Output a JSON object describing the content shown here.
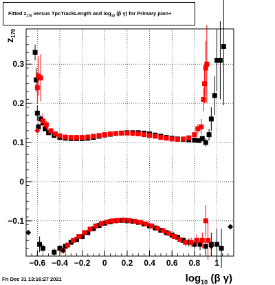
{
  "title": {
    "prefix": "Fitted  z",
    "sub1": "170",
    "middle": " versus TpcTrackLength and log",
    "sub2": "10",
    "suffix": "(β  γ) for Primary pion+"
  },
  "footer": "Fri Dec 31 13:16:27 2021",
  "chart_data": {
    "type": "scatter",
    "xlabel_main": "log",
    "xlabel_sub": "10",
    "xlabel_tail": "(β γ)",
    "ylabel_main": "z",
    "ylabel_sub": "170",
    "xlim": [
      -0.7,
      1.15
    ],
    "ylim": [
      -0.19,
      0.39
    ],
    "xticks": [
      -0.6,
      -0.4,
      -0.2,
      0,
      0.2,
      0.4,
      0.6,
      0.8,
      1
    ],
    "xtick_labels": [
      "−0.6",
      "−0.4",
      "−0.2",
      "0",
      "0.2",
      "0.4",
      "0.6",
      "0.8",
      "1"
    ],
    "yticks": [
      -0.1,
      0,
      0.1,
      0.2,
      0.3
    ],
    "ytick_labels": [
      "−0.1",
      "0",
      "0.1",
      "0.2",
      "0.3"
    ],
    "grid": true,
    "colors": {
      "black": "#000000",
      "red": "#ff0000"
    },
    "series": [
      {
        "color": "#000000",
        "marker": "square",
        "points": [
          [
            -0.62,
            0.33,
            0.02
          ],
          [
            -0.61,
            0.26,
            0.03
          ],
          [
            -0.6,
            0.175,
            0.02
          ],
          [
            -0.59,
            0.14,
            0.01
          ],
          [
            -0.57,
            0.16,
            0.01
          ],
          [
            -0.55,
            0.15,
            0.01
          ],
          [
            -0.53,
            0.135,
            0.005
          ],
          [
            -0.5,
            0.125,
            0.004
          ],
          [
            -0.45,
            0.118,
            0.003
          ],
          [
            -0.4,
            0.113,
            0.002
          ],
          [
            -0.35,
            0.111,
            0.002
          ],
          [
            -0.3,
            0.11,
            0.002
          ],
          [
            -0.25,
            0.11,
            0.002
          ],
          [
            -0.2,
            0.11,
            0.002
          ],
          [
            -0.15,
            0.111,
            0.002
          ],
          [
            -0.1,
            0.113,
            0.002
          ],
          [
            -0.05,
            0.116,
            0.002
          ],
          [
            0,
            0.119,
            0.002
          ],
          [
            0.05,
            0.121,
            0.002
          ],
          [
            0.1,
            0.123,
            0.002
          ],
          [
            0.15,
            0.124,
            0.002
          ],
          [
            0.2,
            0.125,
            0.002
          ],
          [
            0.25,
            0.125,
            0.002
          ],
          [
            0.3,
            0.125,
            0.002
          ],
          [
            0.35,
            0.124,
            0.002
          ],
          [
            0.4,
            0.122,
            0.002
          ],
          [
            0.45,
            0.119,
            0.002
          ],
          [
            0.5,
            0.116,
            0.002
          ],
          [
            0.55,
            0.113,
            0.002
          ],
          [
            0.6,
            0.111,
            0.002
          ],
          [
            0.65,
            0.109,
            0.002
          ],
          [
            0.7,
            0.108,
            0.003
          ],
          [
            0.75,
            0.107,
            0.003
          ],
          [
            0.8,
            0.106,
            0.004
          ],
          [
            0.84,
            0.105,
            0.005
          ],
          [
            0.87,
            0.11,
            0.007
          ],
          [
            0.9,
            0.1,
            0.01
          ],
          [
            0.93,
            0.12,
            0.015
          ],
          [
            0.95,
            0.16,
            0.03
          ],
          [
            0.98,
            0.22,
            0.05
          ],
          [
            1.0,
            0.31,
            0.08
          ],
          [
            1.03,
            0.31,
            0.1
          ],
          [
            1.06,
            0.345,
            0.15
          ],
          [
            -0.58,
            -0.16,
            0.02
          ],
          [
            -0.55,
            -0.17,
            0.01
          ],
          [
            -0.45,
            -0.18,
            0.01
          ],
          [
            -0.4,
            -0.17,
            0.008
          ],
          [
            -0.35,
            -0.165,
            0.005
          ],
          [
            -0.3,
            -0.155,
            0.004
          ],
          [
            -0.25,
            -0.148,
            0.003
          ],
          [
            -0.2,
            -0.14,
            0.002
          ],
          [
            -0.15,
            -0.13,
            0.002
          ],
          [
            -0.1,
            -0.12,
            0.002
          ],
          [
            -0.05,
            -0.112,
            0.002
          ],
          [
            0,
            -0.106,
            0.002
          ],
          [
            0.05,
            -0.102,
            0.002
          ],
          [
            0.1,
            -0.1,
            0.002
          ],
          [
            0.15,
            -0.099,
            0.002
          ],
          [
            0.2,
            -0.1,
            0.002
          ],
          [
            0.25,
            -0.101,
            0.002
          ],
          [
            0.3,
            -0.104,
            0.002
          ],
          [
            0.35,
            -0.108,
            0.002
          ],
          [
            0.4,
            -0.113,
            0.002
          ],
          [
            0.45,
            -0.118,
            0.002
          ],
          [
            0.5,
            -0.124,
            0.003
          ],
          [
            0.55,
            -0.13,
            0.003
          ],
          [
            0.6,
            -0.136,
            0.004
          ],
          [
            0.65,
            -0.142,
            0.005
          ],
          [
            0.7,
            -0.15,
            0.007
          ],
          [
            0.75,
            -0.155,
            0.01
          ],
          [
            0.8,
            -0.16,
            0.012
          ],
          [
            0.85,
            -0.16,
            0.015
          ],
          [
            0.9,
            -0.165,
            0.02
          ],
          [
            0.95,
            -0.16,
            0.03
          ],
          [
            1.0,
            -0.16,
            0.04
          ],
          [
            1.04,
            -0.17,
            0.05
          ]
        ]
      },
      {
        "color": "#ff0000",
        "marker": "square",
        "points": [
          [
            -0.6,
            0.24,
            0.04
          ],
          [
            -0.59,
            0.27,
            0.05
          ],
          [
            -0.57,
            0.265,
            0.06
          ],
          [
            -0.55,
            0.155,
            0.02
          ],
          [
            -0.52,
            0.145,
            0.01
          ],
          [
            -0.48,
            0.13,
            0.006
          ],
          [
            -0.44,
            0.122,
            0.004
          ],
          [
            -0.4,
            0.117,
            0.003
          ],
          [
            -0.35,
            0.114,
            0.002
          ],
          [
            -0.3,
            0.113,
            0.002
          ],
          [
            -0.25,
            0.113,
            0.002
          ],
          [
            -0.2,
            0.113,
            0.002
          ],
          [
            -0.15,
            0.114,
            0.002
          ],
          [
            -0.1,
            0.116,
            0.002
          ],
          [
            -0.05,
            0.118,
            0.002
          ],
          [
            0,
            0.12,
            0.002
          ],
          [
            0.05,
            0.122,
            0.002
          ],
          [
            0.1,
            0.123,
            0.002
          ],
          [
            0.15,
            0.124,
            0.002
          ],
          [
            0.2,
            0.124,
            0.002
          ],
          [
            0.25,
            0.123,
            0.002
          ],
          [
            0.3,
            0.122,
            0.002
          ],
          [
            0.35,
            0.12,
            0.002
          ],
          [
            0.4,
            0.118,
            0.002
          ],
          [
            0.45,
            0.116,
            0.002
          ],
          [
            0.5,
            0.113,
            0.002
          ],
          [
            0.55,
            0.111,
            0.002
          ],
          [
            0.6,
            0.109,
            0.003
          ],
          [
            0.65,
            0.108,
            0.003
          ],
          [
            0.7,
            0.109,
            0.004
          ],
          [
            0.75,
            0.112,
            0.005
          ],
          [
            0.8,
            0.12,
            0.008
          ],
          [
            0.83,
            0.135,
            0.012
          ],
          [
            0.86,
            0.14,
            0.02
          ],
          [
            0.88,
            0.21,
            0.03
          ],
          [
            0.89,
            0.25,
            0.05
          ],
          [
            0.9,
            0.29,
            0.07
          ],
          [
            0.91,
            0.3,
            0.1
          ],
          [
            -0.37,
            -0.175,
            0.01
          ],
          [
            -0.33,
            -0.162,
            0.006
          ],
          [
            -0.28,
            -0.15,
            0.004
          ],
          [
            -0.23,
            -0.14,
            0.003
          ],
          [
            -0.18,
            -0.13,
            0.003
          ],
          [
            -0.13,
            -0.121,
            0.002
          ],
          [
            -0.08,
            -0.113,
            0.002
          ],
          [
            -0.03,
            -0.107,
            0.002
          ],
          [
            0.02,
            -0.103,
            0.002
          ],
          [
            0.07,
            -0.1,
            0.002
          ],
          [
            0.12,
            -0.099,
            0.002
          ],
          [
            0.17,
            -0.098,
            0.002
          ],
          [
            0.22,
            -0.099,
            0.002
          ],
          [
            0.27,
            -0.101,
            0.002
          ],
          [
            0.32,
            -0.104,
            0.002
          ],
          [
            0.37,
            -0.108,
            0.002
          ],
          [
            0.42,
            -0.113,
            0.002
          ],
          [
            0.47,
            -0.119,
            0.003
          ],
          [
            0.52,
            -0.125,
            0.003
          ],
          [
            0.57,
            -0.132,
            0.004
          ],
          [
            0.62,
            -0.14,
            0.005
          ],
          [
            0.67,
            -0.148,
            0.007
          ],
          [
            0.72,
            -0.155,
            0.01
          ],
          [
            0.77,
            -0.155,
            0.012
          ],
          [
            0.82,
            -0.15,
            0.015
          ],
          [
            0.87,
            -0.15,
            0.02
          ],
          [
            0.9,
            -0.1,
            0.04
          ],
          [
            0.92,
            -0.15,
            0.05
          ]
        ]
      },
      {
        "color": "#000000",
        "marker": "diamond",
        "points": [
          [
            -0.68,
            -0.13,
            0.0
          ],
          [
            -0.37,
            -0.175,
            0.0
          ],
          [
            0.95,
            -0.165,
            0.0
          ],
          [
            1.12,
            -0.115,
            0.0
          ]
        ]
      },
      {
        "color": "#ff0000",
        "marker": "diamond",
        "points": [
          [
            -0.6,
            0.13,
            0.0
          ]
        ]
      }
    ]
  }
}
